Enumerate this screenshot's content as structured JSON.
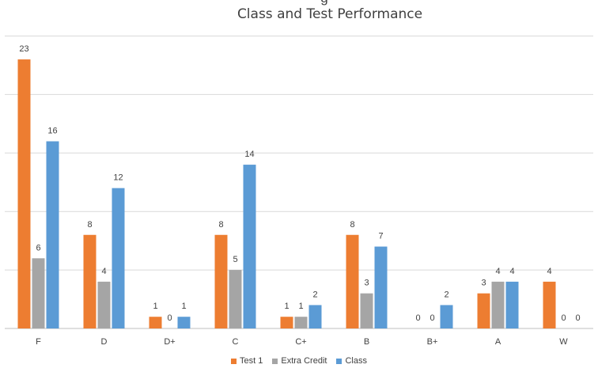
{
  "chart_data": {
    "type": "bar",
    "title": "Class and Test Performance",
    "title_fragment": "g",
    "categories": [
      "F",
      "D",
      "D+",
      "C",
      "C+",
      "B",
      "B+",
      "A",
      "W"
    ],
    "series": [
      {
        "name": "Test 1",
        "color": "#ED7D31",
        "values": [
          23,
          8,
          1,
          8,
          1,
          8,
          0,
          3,
          4
        ]
      },
      {
        "name": "Extra Credit",
        "color": "#A5A5A5",
        "values": [
          6,
          4,
          0,
          5,
          1,
          3,
          0,
          4,
          0
        ]
      },
      {
        "name": "Class",
        "color": "#5B9BD5",
        "values": [
          16,
          12,
          1,
          14,
          2,
          7,
          2,
          4,
          0
        ]
      }
    ],
    "ylim": [
      0,
      25
    ],
    "grid": true,
    "legend": "bottom"
  }
}
